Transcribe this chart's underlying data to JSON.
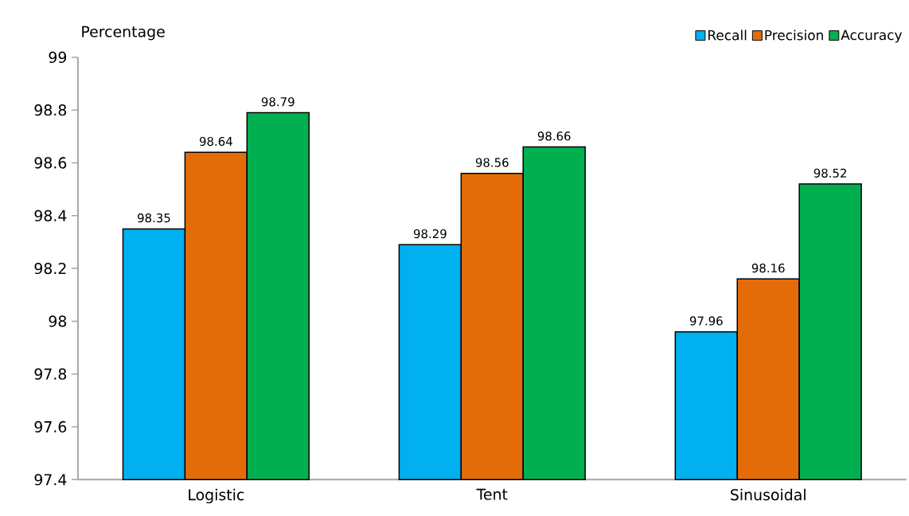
{
  "chart_data": {
    "type": "bar",
    "ylabel": "Percentage",
    "categories": [
      "Logistic",
      "Tent",
      "Sinusoidal"
    ],
    "series": [
      {
        "name": "Recall",
        "color": "#00b0f0",
        "values": [
          98.35,
          98.29,
          97.96
        ]
      },
      {
        "name": "Precision",
        "color": "#e36c09",
        "values": [
          98.64,
          98.56,
          98.16
        ]
      },
      {
        "name": "Accuracy",
        "color": "#00b050",
        "values": [
          98.79,
          98.66,
          98.52
        ]
      }
    ],
    "ylim": [
      97.4,
      99
    ],
    "yticks": [
      97.4,
      97.6,
      97.8,
      98,
      98.2,
      98.4,
      98.6,
      98.8,
      99
    ],
    "data_labels": true,
    "legend": "top right",
    "grid": false
  }
}
